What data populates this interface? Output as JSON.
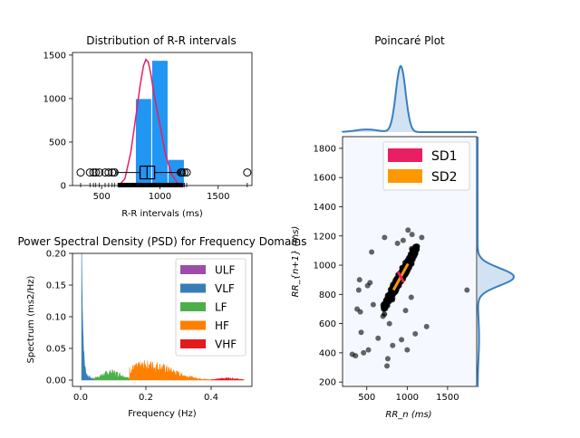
{
  "chart_data": [
    {
      "type": "bar",
      "title": "Distribution of R-R intervals",
      "xlabel": "R-R intervals (ms)",
      "ylabel": "",
      "xlim": [
        250,
        1790
      ],
      "ylim": [
        0,
        1530
      ],
      "xticks": [
        500,
        1000,
        1500
      ],
      "yticks": [
        0,
        500,
        1000,
        1500
      ],
      "histogram": {
        "color": "#2196F3",
        "bins": [
          {
            "x0": 650,
            "x1": 790,
            "count": 25
          },
          {
            "x0": 790,
            "x1": 930,
            "count": 1000
          },
          {
            "x0": 930,
            "x1": 1070,
            "count": 1440
          },
          {
            "x0": 1070,
            "x1": 1210,
            "count": 300
          },
          {
            "x0": 1210,
            "x1": 1350,
            "count": 10
          }
        ]
      },
      "density_curve": {
        "color": "#E91E63",
        "x": [
          650,
          700,
          750,
          800,
          830,
          860,
          880,
          900,
          920,
          950,
          1000,
          1050,
          1100,
          1150,
          1200
        ],
        "y": [
          0,
          80,
          380,
          850,
          1150,
          1380,
          1450,
          1420,
          1300,
          1050,
          700,
          350,
          130,
          30,
          0
        ]
      },
      "boxplot": {
        "y": 150,
        "whisker_low": 630,
        "q1": 830,
        "median": 890,
        "q3": 955,
        "whisker_high": 1170,
        "outliers": [
          320,
          400,
          430,
          450,
          480,
          530,
          560,
          590,
          610,
          1180,
          1190,
          1210,
          1230,
          1750
        ]
      }
    },
    {
      "type": "area",
      "title": "Power Spectral Density (PSD) for Frequency Domains",
      "xlabel": "Frequency (Hz)",
      "ylabel": "Spectrum (ms2/Hz)",
      "xlim": [
        -0.025,
        0.525
      ],
      "ylim": [
        -0.01,
        0.2
      ],
      "xticks": [
        0.0,
        0.2,
        0.4
      ],
      "ytick_labels": [
        "0.00",
        "0.05",
        "0.10",
        "0.15",
        "0.20"
      ],
      "yticks": [
        0.0,
        0.05,
        0.1,
        0.15,
        0.2
      ],
      "legend": {
        "position": "top-right"
      },
      "series": [
        {
          "name": "ULF",
          "color": "#9C4DAA",
          "range": [
            0.0,
            0.003
          ],
          "peak": 0
        },
        {
          "name": "VLF",
          "color": "#377EB8",
          "range": [
            0.003,
            0.04
          ],
          "peak": 0.19
        },
        {
          "name": "LF",
          "color": "#4DAF4A",
          "range": [
            0.04,
            0.15
          ],
          "peak": 0.017
        },
        {
          "name": "HF",
          "color": "#FF7F00",
          "range": [
            0.15,
            0.4
          ],
          "peak": 0.032
        },
        {
          "name": "VHF",
          "color": "#E41A1C",
          "range": [
            0.4,
            0.5
          ],
          "peak": 0.004
        }
      ]
    },
    {
      "type": "scatter",
      "title": "Poincaré Plot",
      "xlabel": "RR_n (ms)",
      "ylabel": "RR_{n+1} (ms)",
      "xlim": [
        200,
        1860
      ],
      "ylim": [
        170,
        1880
      ],
      "xticks": [
        500,
        1000,
        1500
      ],
      "yticks": [
        200,
        400,
        600,
        800,
        1000,
        1200,
        1400,
        1600,
        1800
      ],
      "background": "#F5F9FF",
      "legend": {
        "position": "top-right",
        "entries": [
          {
            "name": "SD1",
            "color": "#E91E63"
          },
          {
            "name": "SD2",
            "color": "#FF9800"
          }
        ]
      },
      "cluster": {
        "center": [
          920,
          920
        ],
        "spread_x": 120,
        "spread_y": 120
      },
      "outliers": [
        [
          320,
          390
        ],
        [
          360,
          380
        ],
        [
          380,
          700
        ],
        [
          400,
          830
        ],
        [
          410,
          900
        ],
        [
          420,
          680
        ],
        [
          430,
          540
        ],
        [
          460,
          400
        ],
        [
          510,
          860
        ],
        [
          520,
          420
        ],
        [
          540,
          880
        ],
        [
          560,
          1090
        ],
        [
          580,
          730
        ],
        [
          640,
          500
        ],
        [
          700,
          650
        ],
        [
          720,
          1190
        ],
        [
          750,
          310
        ],
        [
          760,
          360
        ],
        [
          780,
          600
        ],
        [
          820,
          450
        ],
        [
          880,
          1150
        ],
        [
          930,
          490
        ],
        [
          950,
          1170
        ],
        [
          980,
          690
        ],
        [
          1000,
          420
        ],
        [
          1010,
          1240
        ],
        [
          1050,
          780
        ],
        [
          1060,
          1210
        ],
        [
          1100,
          530
        ],
        [
          1120,
          1110
        ],
        [
          1180,
          1190
        ],
        [
          1240,
          580
        ],
        [
          1740,
          830
        ]
      ],
      "marginal_color": "#3A7EC0",
      "marginal_fill": "#C6DBEF"
    }
  ]
}
